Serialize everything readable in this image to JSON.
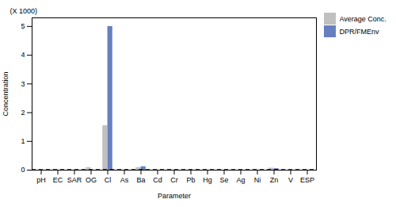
{
  "chart_data": {
    "type": "bar",
    "xlabel": "Parameter",
    "ylabel": "Concentration",
    "annotation": "(X 1000)",
    "categories": [
      "pH",
      "EC",
      "SAR",
      "OG",
      "Cl",
      "As",
      "Ba",
      "Cd",
      "Cr",
      "Pb",
      "Hg",
      "Se",
      "Ag",
      "Ni",
      "Zn",
      "V",
      "ESP"
    ],
    "series": [
      {
        "name": "Average Conc.",
        "color": "#c0c0c0",
        "values": [
          0,
          0,
          0,
          0.09,
          1.55,
          0,
          0.09,
          0,
          0,
          0,
          0,
          0,
          0,
          0,
          0.07,
          0,
          0
        ]
      },
      {
        "name": "DPR/FMEnv",
        "color": "#6680bf",
        "values": [
          0,
          0,
          0,
          0,
          5.0,
          0,
          0.12,
          0,
          0,
          0,
          0,
          0,
          0,
          0,
          0.05,
          0,
          0
        ]
      }
    ],
    "ylim": [
      0,
      5.3
    ],
    "yticks": [
      0,
      1,
      2,
      3,
      4,
      5
    ],
    "grid": false,
    "legend": "right",
    "reference_lines": [
      {
        "y": 0.02,
        "color": "#000000",
        "line_style": "dashed"
      }
    ]
  }
}
